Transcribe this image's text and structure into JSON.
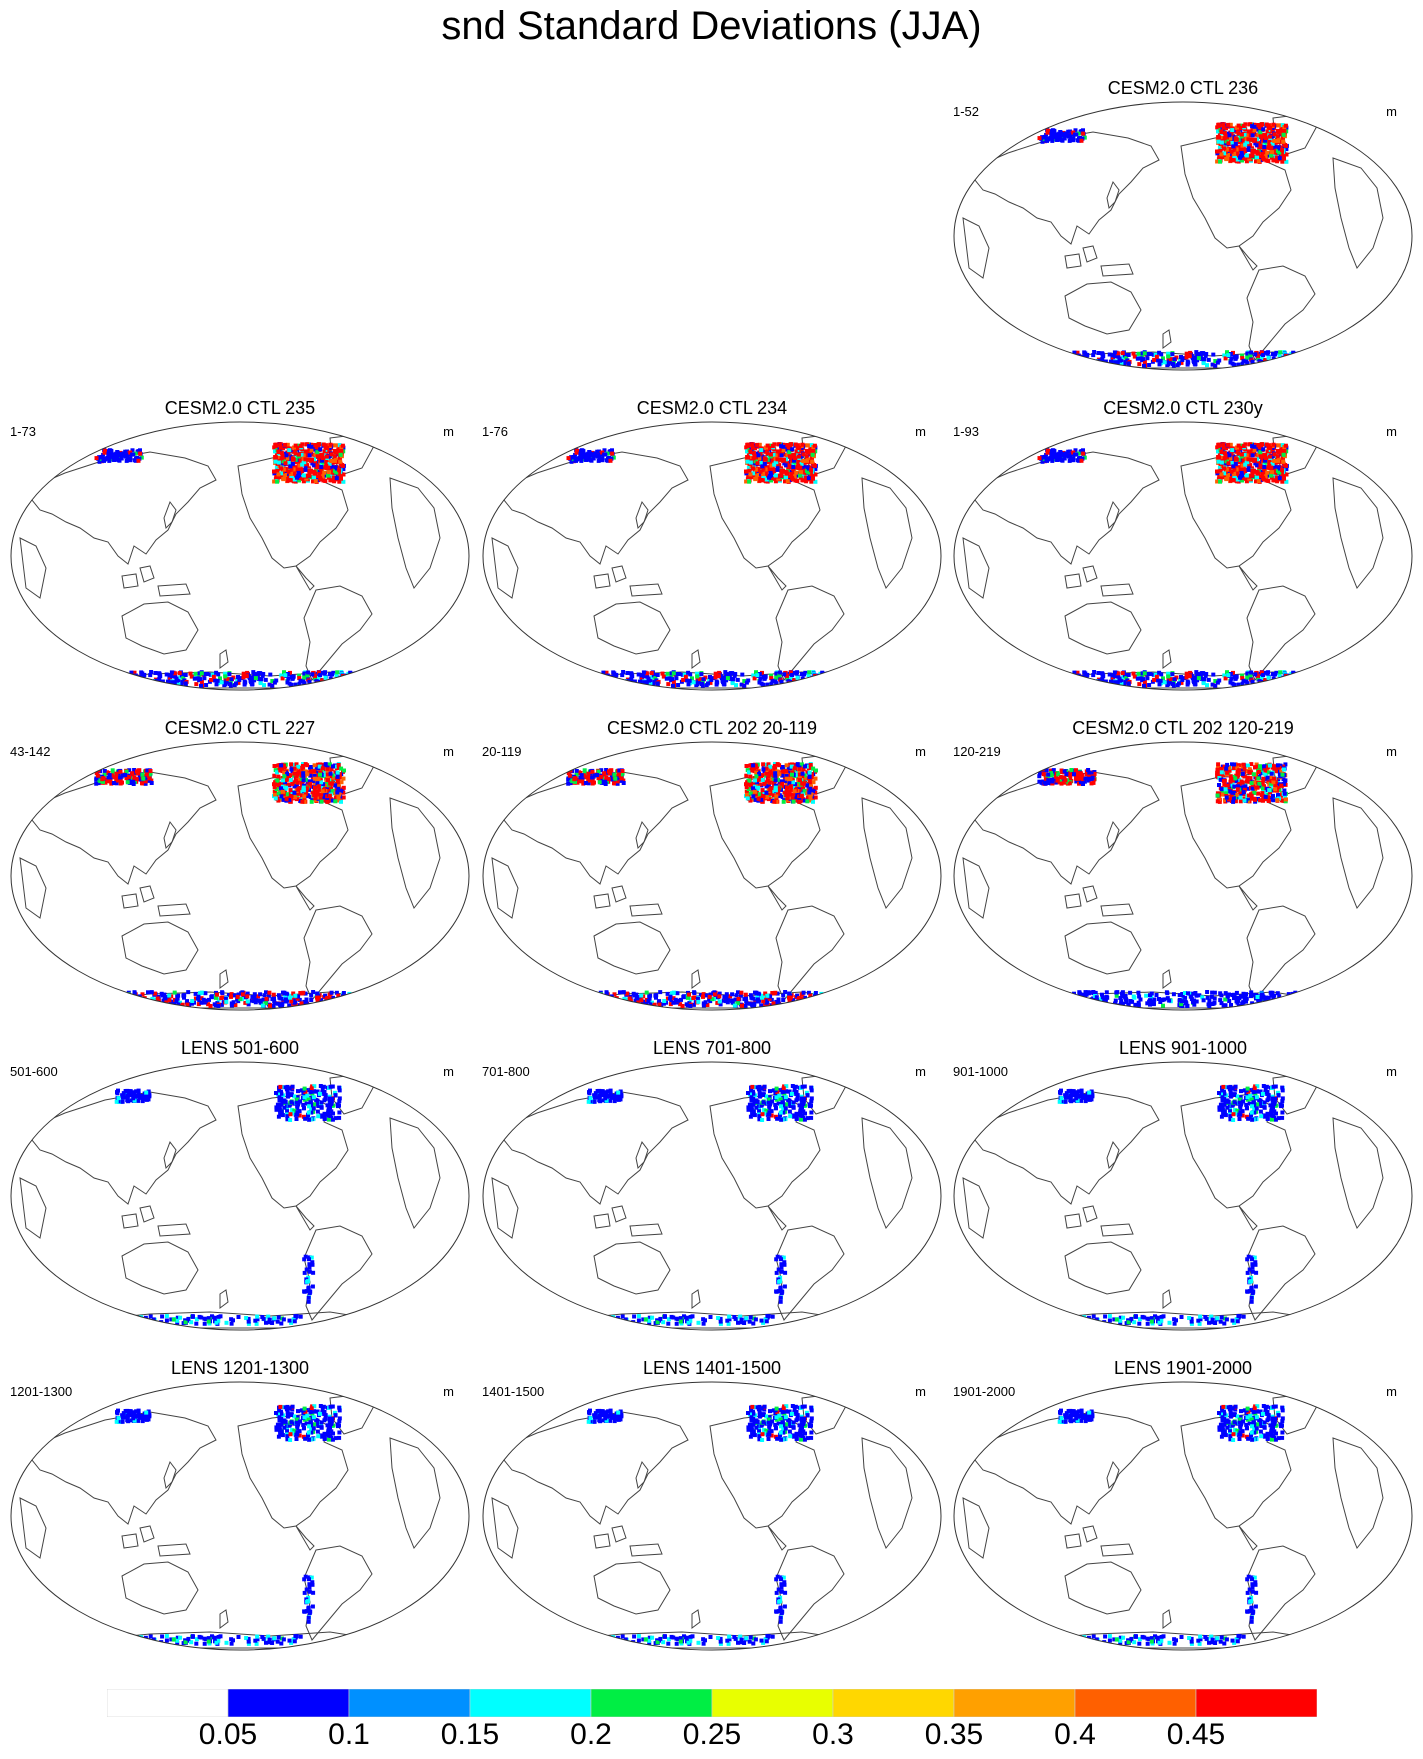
{
  "figure": {
    "title": "snd Standard Deviations (JJA)"
  },
  "panels": [
    {
      "title": "CESM2.0 CTL 236",
      "range": "1-52",
      "units": "m",
      "style": "ctl_a"
    },
    {
      "title": "CESM2.0 CTL 235",
      "range": "1-73",
      "units": "m",
      "style": "ctl_a"
    },
    {
      "title": "CESM2.0 CTL 234",
      "range": "1-76",
      "units": "m",
      "style": "ctl_a"
    },
    {
      "title": "CESM2.0 CTL 230y",
      "range": "1-93",
      "units": "m",
      "style": "ctl_a"
    },
    {
      "title": "CESM2.0 CTL 227",
      "range": "43-142",
      "units": "m",
      "style": "ctl_b"
    },
    {
      "title": "CESM2.0 CTL 202 20-119",
      "range": "20-119",
      "units": "m",
      "style": "ctl_b"
    },
    {
      "title": "CESM2.0 CTL 202 120-219",
      "range": "120-219",
      "units": "m",
      "style": "ctl_c"
    },
    {
      "title": "LENS 501-600",
      "range": "501-600",
      "units": "m",
      "style": "lens"
    },
    {
      "title": "LENS 701-800",
      "range": "701-800",
      "units": "m",
      "style": "lens"
    },
    {
      "title": "LENS 901-1000",
      "range": "901-1000",
      "units": "m",
      "style": "lens"
    },
    {
      "title": "LENS 1201-1300",
      "range": "1201-1300",
      "units": "m",
      "style": "lens"
    },
    {
      "title": "LENS 1401-1500",
      "range": "1401-1500",
      "units": "m",
      "style": "lens"
    },
    {
      "title": "LENS 1901-2000",
      "range": "1901-2000",
      "units": "m",
      "style": "lens"
    }
  ],
  "colorbar": {
    "labels": [
      "0.05",
      "0.1",
      "0.15",
      "0.2",
      "0.25",
      "0.3",
      "0.35",
      "0.4",
      "0.45"
    ],
    "colors": [
      "#ffffff",
      "#0000ff",
      "#0090ff",
      "#00ffff",
      "#00ee44",
      "#e8ff00",
      "#ffd700",
      "#ffa000",
      "#ff6000",
      "#ff0000"
    ]
  }
}
